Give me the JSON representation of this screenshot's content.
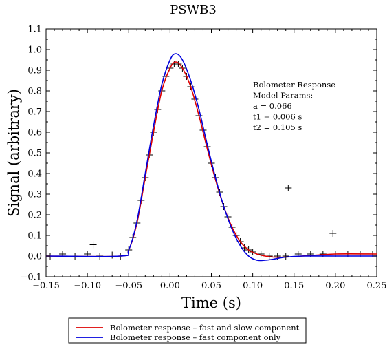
{
  "chart_data": {
    "type": "scatter",
    "title": "PSWB3",
    "xlabel": "Time (s)",
    "ylabel": "Signal (arbitrary)",
    "xlim": [
      -0.15,
      0.25
    ],
    "ylim": [
      -0.1,
      1.1
    ],
    "xticks": [
      "−0.15",
      "−0.10",
      "−0.05",
      "0.00",
      "0.05",
      "0.10",
      "0.15",
      "0.20",
      "0.25"
    ],
    "yticks": [
      "−0.1",
      "0.0",
      "0.1",
      "0.2",
      "0.3",
      "0.4",
      "0.5",
      "0.6",
      "0.7",
      "0.8",
      "0.9",
      "1.0",
      "1.1"
    ],
    "grid": false,
    "legend_position": "bottom-center",
    "annotation": [
      "Bolometer Response",
      "Model Params:",
      "a = 0.066",
      "t1 = 0.006 s",
      "t2 = 0.105 s"
    ],
    "series": [
      {
        "name": "Bolometer response – fast and slow component",
        "type": "line",
        "color": "#dd0000",
        "x": [
          -0.15,
          -0.06,
          -0.05,
          -0.04,
          -0.03,
          -0.02,
          -0.01,
          0.0,
          0.007,
          0.015,
          0.025,
          0.035,
          0.045,
          0.055,
          0.065,
          0.075,
          0.085,
          0.095,
          0.105,
          0.115,
          0.125,
          0.14,
          0.16,
          0.2,
          0.25
        ],
        "y": [
          0.0,
          0.0,
          0.03,
          0.16,
          0.38,
          0.6,
          0.8,
          0.91,
          0.94,
          0.91,
          0.82,
          0.68,
          0.52,
          0.37,
          0.24,
          0.14,
          0.07,
          0.03,
          0.01,
          0.0,
          -0.005,
          -0.005,
          0.0,
          0.01,
          0.01
        ]
      },
      {
        "name": "Bolometer response – fast component only",
        "type": "line",
        "color": "#0000dd",
        "x": [
          -0.15,
          -0.06,
          -0.05,
          -0.04,
          -0.03,
          -0.02,
          -0.01,
          0.0,
          0.007,
          0.015,
          0.025,
          0.035,
          0.045,
          0.055,
          0.065,
          0.075,
          0.085,
          0.095,
          0.105,
          0.115,
          0.125,
          0.14,
          0.16,
          0.2,
          0.25
        ],
        "y": [
          0.0,
          0.0,
          0.03,
          0.17,
          0.4,
          0.63,
          0.83,
          0.95,
          0.98,
          0.95,
          0.85,
          0.71,
          0.54,
          0.38,
          0.24,
          0.13,
          0.05,
          0.0,
          -0.02,
          -0.02,
          -0.015,
          -0.005,
          0.0,
          0.0,
          0.0
        ]
      },
      {
        "name": "",
        "type": "scatter",
        "marker": "+",
        "color": "#000000",
        "x": [
          -0.145,
          -0.13,
          -0.115,
          -0.1,
          -0.085,
          -0.07,
          -0.06,
          -0.05,
          -0.045,
          -0.04,
          -0.035,
          -0.03,
          -0.025,
          -0.02,
          -0.015,
          -0.01,
          -0.005,
          0.0,
          0.005,
          0.01,
          0.015,
          0.02,
          0.025,
          0.03,
          0.035,
          0.04,
          0.045,
          0.05,
          0.055,
          0.06,
          0.065,
          0.07,
          0.075,
          0.08,
          0.085,
          0.09,
          0.095,
          0.1,
          0.11,
          0.12,
          0.13,
          0.14,
          0.155,
          0.17,
          0.185,
          0.2,
          0.215,
          0.23,
          0.245,
          -0.093,
          0.143,
          0.197
        ],
        "y": [
          0.0,
          0.01,
          0.0,
          0.01,
          0.0,
          0.005,
          0.0,
          0.03,
          0.09,
          0.16,
          0.27,
          0.38,
          0.49,
          0.6,
          0.71,
          0.8,
          0.87,
          0.91,
          0.93,
          0.93,
          0.91,
          0.87,
          0.82,
          0.76,
          0.68,
          0.61,
          0.53,
          0.45,
          0.38,
          0.31,
          0.24,
          0.19,
          0.14,
          0.1,
          0.07,
          0.04,
          0.03,
          0.02,
          0.01,
          0.0,
          0.0,
          0.0,
          0.01,
          0.01,
          0.01,
          0.01,
          0.01,
          0.01,
          0.01,
          0.055,
          0.33,
          0.11
        ]
      }
    ]
  }
}
